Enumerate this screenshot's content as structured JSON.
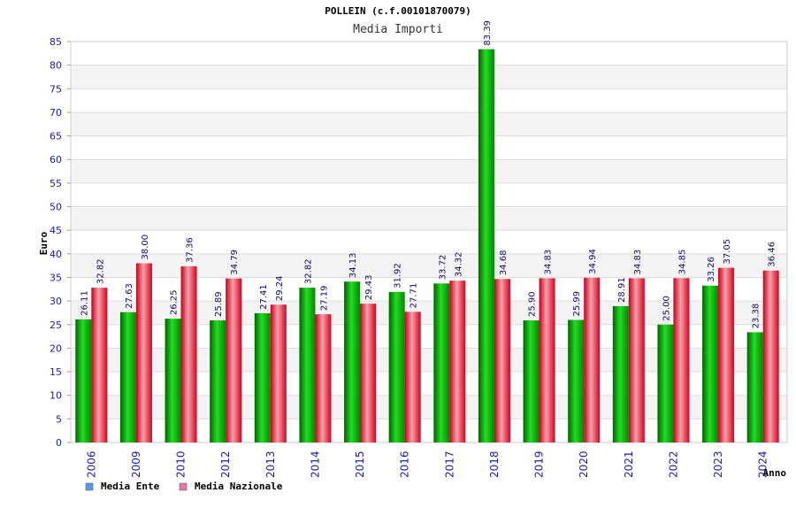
{
  "chart_data": {
    "type": "bar",
    "title": "POLLEIN (c.f.00101870079)",
    "subtitle": "Media Importi",
    "ylabel": "Euro",
    "xlabel": "Anno",
    "ylim": [
      0,
      85
    ],
    "ytick_step": 5,
    "grid": true,
    "legend_position": "bottom-left",
    "categories": [
      "2006",
      "2009",
      "2010",
      "2012",
      "2013",
      "2014",
      "2015",
      "2016",
      "2017",
      "2018",
      "2019",
      "2020",
      "2021",
      "2022",
      "2023",
      "2024"
    ],
    "value_labels": {
      "ente": [
        "26.11",
        "27.63",
        "26.25",
        "25.89",
        "27.41",
        "32.82",
        "34.13",
        "31.92",
        "33.72",
        "83.39",
        "25.90",
        "25.99",
        "28.91",
        "25.00",
        "33.26",
        "23.38"
      ],
      "nazionale": [
        "32.82",
        "38.00",
        "37.36",
        "34.79",
        "29.24",
        "27.19",
        "29.43",
        "27.71",
        "34.32",
        "34.68",
        "34.83",
        "34.94",
        "34.83",
        "34.85",
        "37.05",
        "36.46"
      ]
    },
    "series": [
      {
        "name": "Media Ente",
        "color": "#00aa00",
        "legend_color": "#4f9de8",
        "values": [
          26.11,
          27.63,
          26.25,
          25.89,
          27.41,
          32.82,
          34.13,
          31.92,
          33.72,
          83.39,
          25.9,
          25.99,
          28.91,
          25.0,
          33.26,
          23.38
        ]
      },
      {
        "name": "Media Nazionale",
        "color": "#e8102a",
        "legend_color": "#e07aa6",
        "values": [
          32.82,
          38.0,
          37.36,
          34.79,
          29.24,
          27.19,
          29.43,
          27.71,
          34.32,
          34.68,
          34.83,
          34.94,
          34.83,
          34.85,
          37.05,
          36.46
        ]
      }
    ]
  }
}
